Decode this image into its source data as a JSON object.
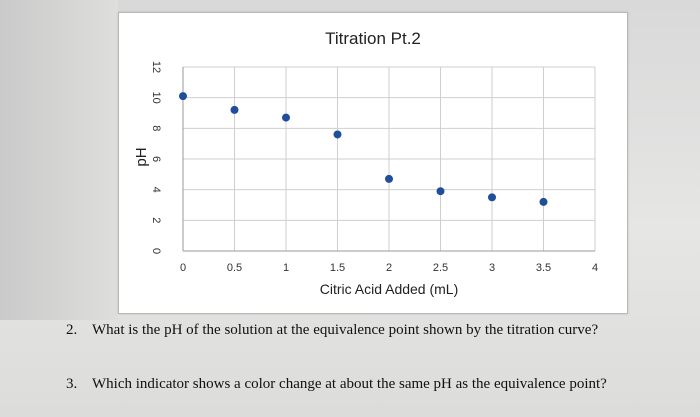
{
  "chart_data": {
    "type": "scatter",
    "title": "Titration Pt.2",
    "xlabel": "Citric Acid Added (mL)",
    "ylabel": "pH",
    "xlim": [
      0,
      4
    ],
    "ylim": [
      0,
      12
    ],
    "x_ticks": [
      "0",
      "0.5",
      "1",
      "1.5",
      "2",
      "2.5",
      "3",
      "3.5",
      "4"
    ],
    "y_ticks": [
      "0",
      "2",
      "4",
      "6",
      "8",
      "10",
      "12"
    ],
    "grid": true,
    "marker_color": "#1f4e9a",
    "points": [
      {
        "x": 0,
        "y": 10.1
      },
      {
        "x": 0.5,
        "y": 9.2
      },
      {
        "x": 1,
        "y": 8.7
      },
      {
        "x": 1.5,
        "y": 7.6
      },
      {
        "x": 2,
        "y": 4.7
      },
      {
        "x": 2.5,
        "y": 3.9
      },
      {
        "x": 3,
        "y": 3.5
      },
      {
        "x": 3.5,
        "y": 3.2
      }
    ]
  },
  "questions": [
    {
      "number": "2.",
      "text": "What is the pH of the solution at the equivalence point shown by the titration curve?"
    },
    {
      "number": "3.",
      "text": "Which indicator shows a color change at about the same pH as the equivalence point?"
    }
  ]
}
